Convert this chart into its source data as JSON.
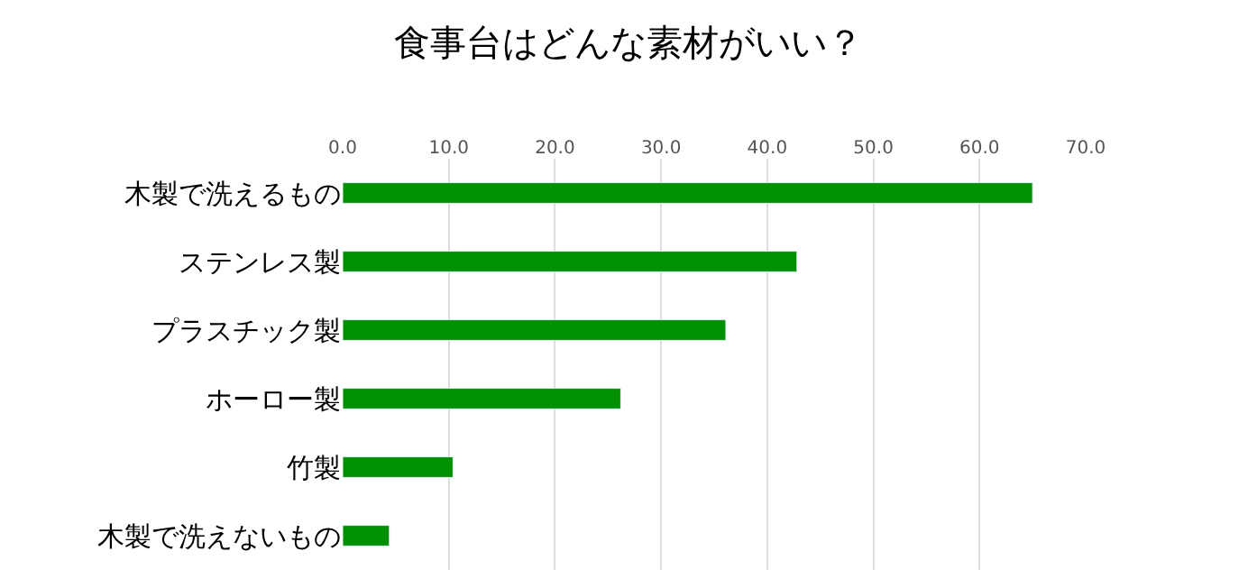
{
  "chart_data": {
    "type": "bar",
    "orientation": "horizontal",
    "title": "食事台はどんな素材がいい？",
    "categories": [
      "木製で洗えるもの",
      "ステンレス製",
      "プラスチック製",
      "ホーロー製",
      "竹製",
      "木製で洗えないもの"
    ],
    "values": [
      65.0,
      42.8,
      36.1,
      26.2,
      10.4,
      4.4
    ],
    "color": "#009000",
    "xlim": [
      0,
      70
    ],
    "xticks": [
      {
        "value": 0,
        "label": "0.0"
      },
      {
        "value": 10,
        "label": "10.0"
      },
      {
        "value": 20,
        "label": "20.0"
      },
      {
        "value": 30,
        "label": "30.0"
      },
      {
        "value": 40,
        "label": "40.0"
      },
      {
        "value": 50,
        "label": "50.0"
      },
      {
        "value": 60,
        "label": "60.0"
      },
      {
        "value": 70,
        "label": "70.0"
      }
    ],
    "grid": "x"
  }
}
